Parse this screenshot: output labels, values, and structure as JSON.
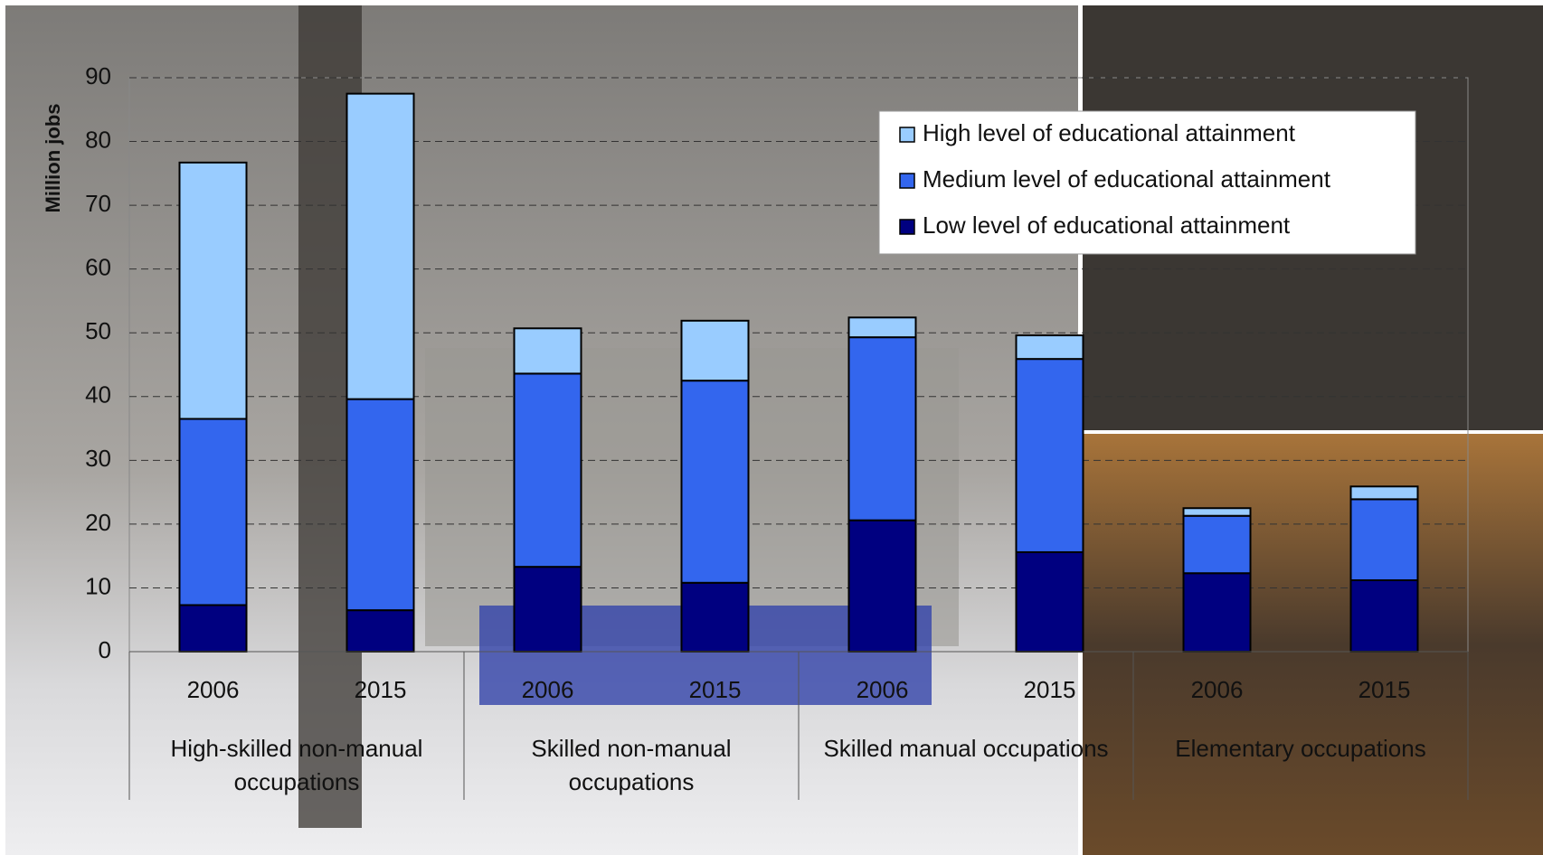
{
  "chart_data": {
    "type": "stacked-bar",
    "y_label": "Million jobs",
    "categories": [
      "2006",
      "2015",
      "2006",
      "2015",
      "2006",
      "2015",
      "2006",
      "2015"
    ],
    "groups": [
      "High-skilled non-manual occupations",
      "Skilled non-manual occupations",
      "Skilled manual occupations",
      "Elementary occupations"
    ],
    "series": [
      {
        "name": "Low level of educational attainment",
        "color": "#000080",
        "values": [
          7.3,
          6.5,
          13.3,
          10.8,
          20.6,
          15.6,
          12.3,
          11.2
        ]
      },
      {
        "name": "Medium level of educational attainment",
        "color": "#3366ee",
        "values": [
          29.2,
          33.1,
          30.3,
          31.7,
          28.7,
          30.3,
          9.0,
          12.7
        ]
      },
      {
        "name": "High level of educational attainment",
        "color": "#99ccff",
        "values": [
          40.2,
          47.9,
          7.1,
          9.4,
          3.1,
          3.7,
          1.2,
          2.0
        ]
      }
    ],
    "ylim": [
      0,
      90
    ],
    "yticks": [
      0,
      10,
      20,
      30,
      40,
      50,
      60,
      70,
      80,
      90
    ],
    "grid": true,
    "legend": "top-right"
  }
}
